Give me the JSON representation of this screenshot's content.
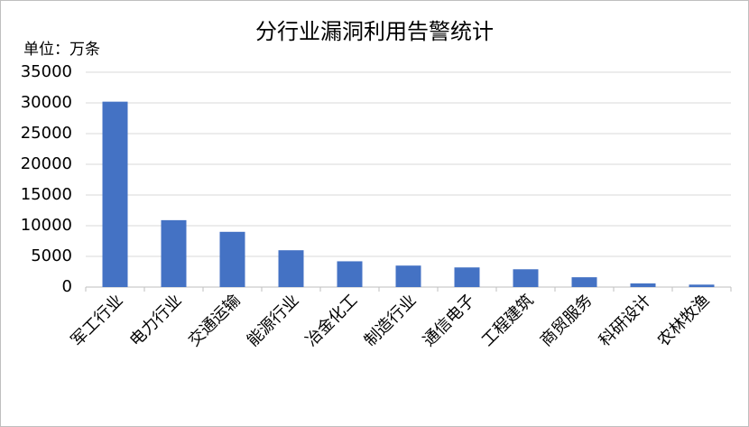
{
  "chart_data": {
    "type": "bar",
    "title": "分行业漏洞利用告警统计",
    "unit_label": "单位：万条",
    "categories": [
      "军工行业",
      "电力行业",
      "交通运输",
      "能源行业",
      "冶金化工",
      "制造行业",
      "通信电子",
      "工程建筑",
      "商贸服务",
      "科研设计",
      "农林牧渔"
    ],
    "values": [
      30200,
      10900,
      9000,
      6000,
      4200,
      3500,
      3200,
      2900,
      1600,
      600,
      400
    ],
    "color": "#4472c4",
    "ylim": [
      0,
      35000
    ],
    "yticks": [
      0,
      5000,
      10000,
      15000,
      20000,
      25000,
      30000,
      35000
    ],
    "grid": true
  }
}
